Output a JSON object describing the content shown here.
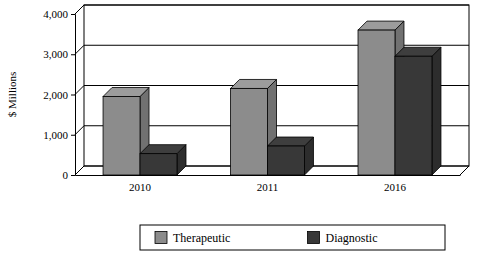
{
  "chart_data": {
    "type": "bar",
    "y_label": "$ Millions",
    "categories": [
      "2010",
      "2011",
      "2016"
    ],
    "series": [
      {
        "name": "Therapeutic",
        "color": "#8c8c8c",
        "values": [
          1950,
          2150,
          3600
        ]
      },
      {
        "name": "Diagnostic",
        "color": "#383838",
        "values": [
          530,
          720,
          2950
        ]
      }
    ],
    "ylim": [
      0,
      4000
    ],
    "yticks": [
      0,
      {
        "value": 1000,
        "label": "1,000"
      },
      {
        "value": 2000,
        "label": "2,000"
      },
      {
        "value": 3000,
        "label": "3,000"
      },
      {
        "value": 4000,
        "label": "4,000"
      }
    ],
    "grid": true,
    "legend": "bottom"
  }
}
